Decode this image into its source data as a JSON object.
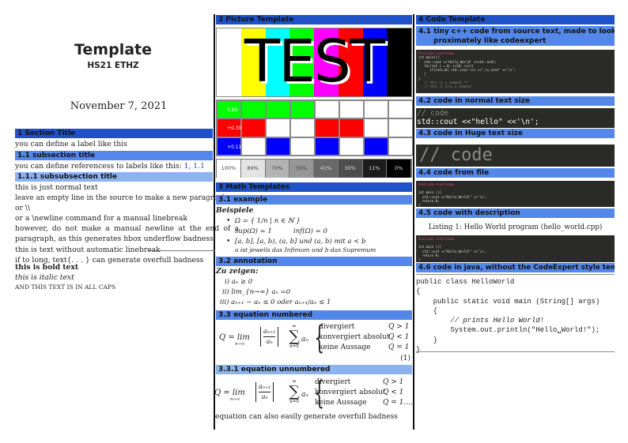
{
  "title": {
    "main": "Template",
    "sub": "HS21 ETHZ",
    "date": "November 7, 2021"
  },
  "col1": {
    "s1": "1  Section Title",
    "s1_text": "you can define a label like this",
    "s11": "1.1  subsection title",
    "s11_text": "you can define referencess to labels like this: ",
    "s11_refs": "1, 1.1",
    "s111": "1.1.1  subsubsection title",
    "lines": [
      "this is just normal text",
      "leave an empty line in the source to make a new paragraph",
      "or \\\\",
      "or a \\newline command for a manual linebreak",
      "however, do not make a manual newline at the end of a",
      "paragraph, as this generates hbox underflow badness"
    ],
    "overfull": "this is text without automatic linebreak",
    "overfull2": "if to long, text{. . . } can generate overfull badness",
    "bold": "this is bold text",
    "italic": "this is italic text",
    "caps": "AND THIS TEXT IS IN ALL CAPS"
  },
  "col2": {
    "s2": "2  Picture Template",
    "test_word": "TEST",
    "bars": [
      "#ffffff",
      "#ffff00",
      "#00ffff",
      "#00ff00",
      "#ff00ff",
      "#ff0000",
      "#0000ff",
      "#000000"
    ],
    "grid": {
      "labels": [
        "0.89",
        "+0.30",
        "+0.11"
      ],
      "rows": [
        [
          "#00ff00",
          "#00ff00",
          "#00ff00",
          "#00ff00",
          "#ffffff",
          "#ffffff",
          "#ffffff",
          "#ffffff"
        ],
        [
          "#ff0000",
          "#ff0000",
          "#ffffff",
          "#ffffff",
          "#ff0000",
          "#ff0000",
          "#ffffff",
          "#ffffff"
        ],
        [
          "#0000ff",
          "#ffffff",
          "#0000ff",
          "#ffffff",
          "#0000ff",
          "#ffffff",
          "#0000ff",
          "#ffffff"
        ]
      ]
    },
    "grays": [
      {
        "label": "100%",
        "color": "#ffffff"
      },
      {
        "label": "89%",
        "color": "#e3e3e3"
      },
      {
        "label": "70%",
        "color": "#b3b3b3"
      },
      {
        "label": "59%",
        "color": "#969696"
      },
      {
        "label": "41%",
        "color": "#696969"
      },
      {
        "label": "30%",
        "color": "#4d4d4d"
      },
      {
        "label": "11%",
        "color": "#1c1c1c"
      },
      {
        "label": "0%",
        "color": "#000000"
      }
    ],
    "s3": "3  Math Templates",
    "s31": "3.1  example",
    "beispiele": "Beispiele",
    "b1": "Ω = { 1/n | n ∈ ℕ }",
    "b1b": "sup(Ω) = 1          inf(Ω) = 0",
    "b2": "[a, b], [a, b), (a, b] und (a, b) mit a < b",
    "b2b": "a ist jeweils das Infimum und b das Supremum",
    "s32": "3.2  annotation",
    "zuzeigen": "Zu zeigen:",
    "items": [
      "i)  aₙ ≥ 0",
      "ii)  lim_{n→∞} aₙ  =0",
      "iii)  aₙ₊₁ − aₙ ≤ 0 oder aₙ₊₁/aₙ ≤ 1"
    ],
    "s33": "3.3  equation numbered",
    "s331": "3.3.1  equation unnumbered",
    "eq_lhs": "Q = lim",
    "eq_sub": "n→∞",
    "eq_num": "aₙ₊₁",
    "eq_den": "aₙ",
    "sum_top": "∞",
    "sum_bot": "n=0",
    "sum_term": "aₙ",
    "cases": [
      {
        "text": "divergiert",
        "cond": "Q > 1"
      },
      {
        "text": "konvergiert absolut",
        "cond": "Q < 1"
      },
      {
        "text": "keine Aussage",
        "cond": "Q = 1"
      }
    ],
    "eq_label": "(1)",
    "overfull_dots": "....",
    "eq_text": "equation can also easily generate overfull badness"
  },
  "col3": {
    "s4": "4  Code Template",
    "s41a": "4.1  tiny c++ code from source text, made to look ap-",
    "s41b": "proximately like codeexpert",
    "code41": [
      "#include <iostream>",
      "int main(){",
      "   std::cout <<\"Hello_World\" <<std::endl;",
      "   for(int i = 0; i<10; ++i){",
      "      if(i%2==0) std::cout <<i <<\"_is_even\" <<'\\n';",
      "   }",
      "}",
      "   /* this is a comment */",
      "   // this is also a comment"
    ],
    "s42": "4.2  code in normal text size",
    "code42_comment": "// code",
    "code42": "std::cout <<\"hello\" <<'\\n';",
    "s43": "4.3  code in Huge text size",
    "code43": "// code",
    "s44": "4.4  code from file",
    "code44": [
      "#include <iostream>",
      "",
      "int main (){",
      "  std::cout <<\"Hello_World!\" <<'\\n';",
      "  return 0;",
      "}"
    ],
    "s45": "4.5  code with description",
    "caption": "Listing 1: Hello World program (hello_world.cpp)",
    "s46": "4.6  code in java, without the CodeExpert style template",
    "java": [
      "public class HelloWorld",
      "{",
      "    public static void main (String[] args)",
      "    {",
      "        // prints Hello World!",
      "        System.out.println(\"Hello␣World!\");",
      "    }",
      "}"
    ]
  }
}
